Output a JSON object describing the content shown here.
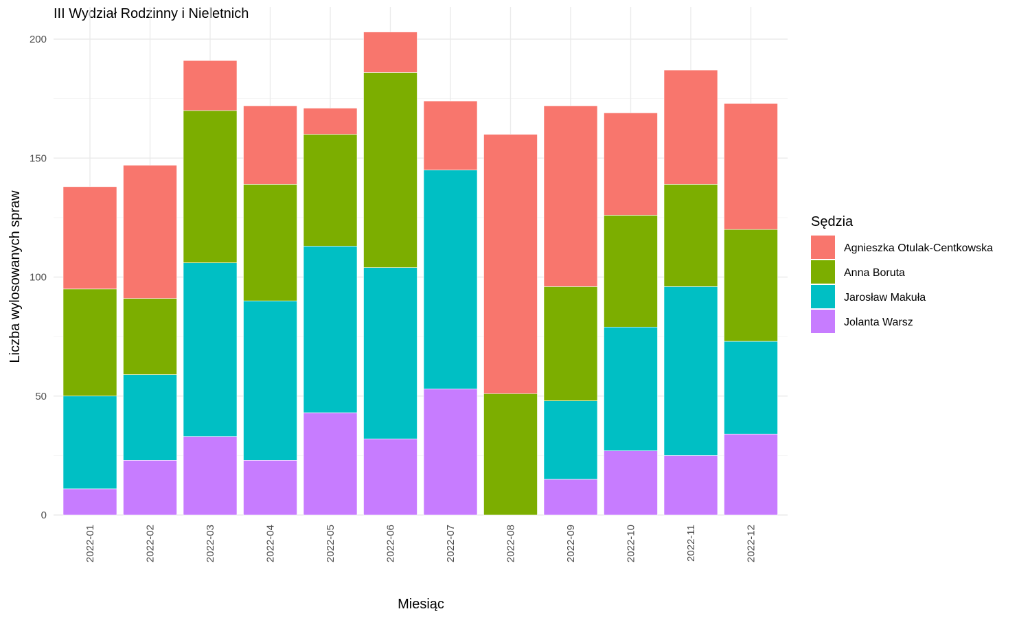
{
  "chart_data": {
    "type": "bar",
    "stacked": true,
    "title": "III Wydział Rodzinny i Nieletnich",
    "xlabel": "Miesiąc",
    "ylabel": "Liczba wylosowanych spraw",
    "categories": [
      "2022-01",
      "2022-02",
      "2022-03",
      "2022-04",
      "2022-05",
      "2022-06",
      "2022-07",
      "2022-08",
      "2022-09",
      "2022-10",
      "2022-11",
      "2022-12"
    ],
    "ylim": [
      0,
      210
    ],
    "yticks": [
      0,
      50,
      100,
      150,
      200
    ],
    "grid": true,
    "legend": {
      "title": "Sędzia",
      "position": "right"
    },
    "series": [
      {
        "name": "Agnieszka Otulak-Centkowska",
        "color": "#F8766D",
        "values": [
          43,
          56,
          21,
          33,
          11,
          17,
          29,
          109,
          76,
          43,
          48,
          53
        ]
      },
      {
        "name": "Anna Boruta",
        "color": "#7CAE00",
        "values": [
          45,
          32,
          64,
          49,
          47,
          82,
          0,
          51,
          48,
          47,
          43,
          47
        ]
      },
      {
        "name": "Jarosław Makuła",
        "color": "#00BFC4",
        "values": [
          39,
          36,
          73,
          67,
          70,
          72,
          92,
          0,
          33,
          52,
          71,
          39
        ]
      },
      {
        "name": "Jolanta Warsz",
        "color": "#C77CFF",
        "values": [
          11,
          23,
          33,
          23,
          43,
          32,
          53,
          0,
          15,
          27,
          25,
          34
        ]
      }
    ]
  }
}
